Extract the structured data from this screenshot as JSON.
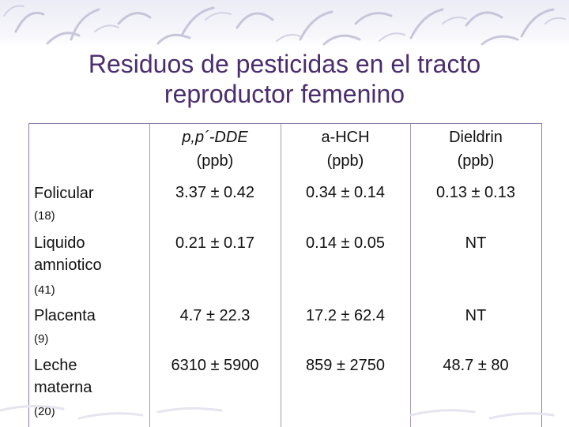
{
  "slide": {
    "title_line1": "Residuos de pesticidas en el tracto",
    "title_line2": "reproductor femenino"
  },
  "table": {
    "headers": [
      {
        "name": "p,p´-DDE",
        "unit": "(ppb)"
      },
      {
        "name": "a-HCH",
        "unit": "(ppb)"
      },
      {
        "name": "Dieldrin",
        "unit": "(ppb)"
      }
    ],
    "rows": [
      {
        "label_line1": "Folicular",
        "label_line2": "",
        "count": "(18)",
        "values": [
          "3.37 ± 0.42",
          "0.34 ± 0.14",
          "0.13 ± 0.13"
        ]
      },
      {
        "label_line1": "Liquido",
        "label_line2": "amniotico",
        "count": "(41)",
        "values": [
          "0.21 ± 0.17",
          "0.14 ± 0.05",
          "NT"
        ]
      },
      {
        "label_line1": "Placenta",
        "label_line2": "",
        "count": "(9)",
        "values": [
          "4.7 ± 22.3",
          "17.2 ± 62.4",
          "NT"
        ]
      },
      {
        "label_line1": "Leche",
        "label_line2": "materna",
        "count": "(20)",
        "values": [
          "6310 ± 5900",
          "859 ± 2750",
          "48.7 ± 80"
        ]
      }
    ]
  },
  "colors": {
    "title": "#4b2d6e",
    "border": "#8c7aa8",
    "banner": "#ececf6"
  }
}
